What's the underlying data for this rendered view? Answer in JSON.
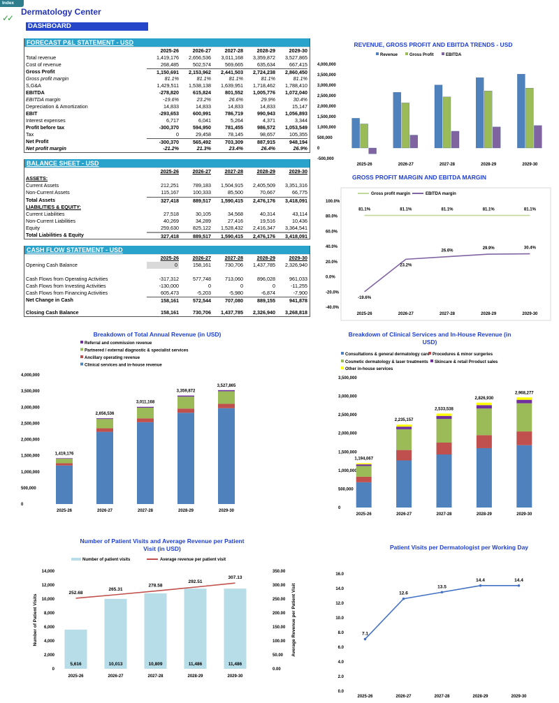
{
  "header": {
    "index_tab": "Index",
    "title": "Dermatology Center",
    "check_icon": "double-check-icon",
    "dashboard_label": "DASHBOARD"
  },
  "colors": {
    "accent_blue": "#2546c8",
    "table_header": "#2aa3cc",
    "title_blue": "#1f3fd0"
  },
  "pnl": {
    "title": "FORECAST P&L STATEMENT - USD",
    "years": [
      "2025-26",
      "2026-27",
      "2027-28",
      "2028-29",
      "2029-30"
    ],
    "rows": [
      {
        "label": "Total revenue",
        "values": [
          "1,419,176",
          "2,656,536",
          "3,011,168",
          "3,359,872",
          "3,527,865"
        ]
      },
      {
        "label": "Cost of revenue",
        "values": [
          "268,485",
          "502,574",
          "569,665",
          "635,634",
          "667,415"
        ]
      },
      {
        "label": "Gross Profit",
        "values": [
          "1,150,691",
          "2,153,962",
          "2,441,503",
          "2,724,238",
          "2,860,450"
        ]
      },
      {
        "label": "Gross profit margin",
        "values": [
          "81.1%",
          "81.1%",
          "81.1%",
          "81.1%",
          "81.1%"
        ]
      },
      {
        "label": "S,G&A",
        "values": [
          "1,429,511",
          "1,538,138",
          "1,639,951",
          "1,718,462",
          "1,788,410"
        ]
      },
      {
        "label": "EBITDA",
        "values": [
          "-278,820",
          "615,824",
          "801,552",
          "1,005,776",
          "1,072,040"
        ]
      },
      {
        "label": "EBITDA margin",
        "values": [
          "-19.6%",
          "23.2%",
          "26.6%",
          "29.9%",
          "30.4%"
        ]
      },
      {
        "label": "Depreciation & Amortization",
        "values": [
          "14,833",
          "14,833",
          "14,833",
          "14,833",
          "15,147"
        ]
      },
      {
        "label": "EBIT",
        "values": [
          "-293,653",
          "600,991",
          "786,719",
          "990,943",
          "1,056,893"
        ]
      },
      {
        "label": "Interest expenses",
        "values": [
          "6,717",
          "6,041",
          "5,264",
          "4,371",
          "3,344"
        ]
      },
      {
        "label": "Profit before tax",
        "values": [
          "-300,370",
          "594,950",
          "781,455",
          "986,572",
          "1,053,549"
        ]
      },
      {
        "label": "Tax",
        "values": [
          "0",
          "29,458",
          "78,145",
          "98,657",
          "105,355"
        ]
      },
      {
        "label": "Net Profit",
        "values": [
          "-300,370",
          "565,492",
          "703,309",
          "887,915",
          "948,194"
        ]
      },
      {
        "label": "Net profit margin",
        "values": [
          "-21.2%",
          "21.3%",
          "23.4%",
          "26.4%",
          "26.9%"
        ]
      }
    ]
  },
  "balance": {
    "title": "BALANCE SHEET - USD",
    "years": [
      "2025-26",
      "2026-27",
      "2027-28",
      "2028-29",
      "2029-30"
    ],
    "rows": [
      {
        "label": "ASSETS:",
        "values": []
      },
      {
        "label": "Current Assets",
        "values": [
          "212,251",
          "789,183",
          "1,504,915",
          "2,405,509",
          "3,351,316"
        ]
      },
      {
        "label": "Non-Current Assets",
        "values": [
          "115,167",
          "100,333",
          "85,500",
          "70,667",
          "66,775"
        ]
      },
      {
        "label": "Total Assets",
        "values": [
          "327,418",
          "889,517",
          "1,590,415",
          "2,476,176",
          "3,418,091"
        ]
      },
      {
        "label": "LIABILITIES & EQUITY:",
        "values": []
      },
      {
        "label": "Current Liabilities",
        "values": [
          "27,518",
          "30,105",
          "34,568",
          "40,314",
          "43,114"
        ]
      },
      {
        "label": "Non-Current Liabilities",
        "values": [
          "40,269",
          "34,289",
          "27,416",
          "19,516",
          "10,436"
        ]
      },
      {
        "label": "Equity",
        "values": [
          "259,630",
          "825,122",
          "1,528,432",
          "2,416,347",
          "3,364,541"
        ]
      },
      {
        "label": "Total Liabilities & Equity",
        "values": [
          "327,418",
          "889,517",
          "1,590,415",
          "2,476,176",
          "3,418,091"
        ]
      }
    ]
  },
  "cashflow": {
    "title": "CASH FLOW STATEMENT - USD",
    "years": [
      "2025-26",
      "2026-27",
      "2027-28",
      "2028-29",
      "2029-30"
    ],
    "rows": [
      {
        "label": "Opening Cash Balance",
        "values": [
          "0",
          "158,161",
          "730,706",
          "1,437,785",
          "2,326,940"
        ]
      },
      {
        "label": "Cash Flows from Operating Activities",
        "values": [
          "-317,312",
          "577,748",
          "713,060",
          "896,028",
          "961,033"
        ]
      },
      {
        "label": "Cash Flows from Investing Activities",
        "values": [
          "-130,000",
          "0",
          "0",
          "0",
          "-11,255"
        ]
      },
      {
        "label": "Cash Flows from Financing Activities",
        "values": [
          "605,473",
          "-5,203",
          "-5,980",
          "-6,874",
          "-7,900"
        ]
      },
      {
        "label": "Net Change in Cash",
        "values": [
          "158,161",
          "572,544",
          "707,080",
          "889,155",
          "941,878"
        ]
      },
      {
        "label": "Closing Cash Balance",
        "values": [
          "158,161",
          "730,706",
          "1,437,785",
          "2,326,940",
          "3,268,818"
        ]
      }
    ]
  },
  "chart_data": [
    {
      "type": "bar",
      "title": "REVENUE, GROSS PROFIT AND EBITDA TRENDS - USD",
      "categories": [
        "2025-26",
        "2026-27",
        "2027-28",
        "2028-29",
        "2029-30"
      ],
      "ylim": [
        -500000,
        4000000
      ],
      "ytick_step": 500000,
      "legend": "top",
      "series": [
        {
          "name": "Revenue",
          "color": "#4f81bd",
          "values": [
            1419176,
            2656536,
            3011168,
            3359872,
            3527865
          ]
        },
        {
          "name": "Gross Profit",
          "color": "#9bbb59",
          "values": [
            1150691,
            2153962,
            2441503,
            2724238,
            2860450
          ]
        },
        {
          "name": "EBITDA",
          "color": "#8064a2",
          "values": [
            -278820,
            615824,
            801552,
            1005776,
            1072040
          ]
        }
      ]
    },
    {
      "type": "line",
      "title": "GROSS PROFIT MARGIN AND EBITDA MARGIN",
      "categories": [
        "2025-26",
        "2026-27",
        "2027-28",
        "2028-29",
        "2029-30"
      ],
      "ylim": [
        -40,
        100
      ],
      "ytick_step": 20,
      "unit": "%",
      "legend": "top",
      "series": [
        {
          "name": "Gross profit margin",
          "color": "#c4d79b",
          "values": [
            81.1,
            81.1,
            81.1,
            81.1,
            81.1
          ]
        },
        {
          "name": "EBITDA margin",
          "color": "#8064a2",
          "values": [
            -19.6,
            23.2,
            26.6,
            29.9,
            30.4
          ]
        }
      ]
    },
    {
      "type": "bar",
      "stacked": true,
      "title": "Breakdown of Total Annual Revenue (in USD)",
      "categories": [
        "2025-26",
        "2026-27",
        "2027-28",
        "2028-29",
        "2029-30"
      ],
      "ylim": [
        0,
        4000000
      ],
      "ytick_step": 500000,
      "legend": "top",
      "totals": [
        1419176,
        2656536,
        3011168,
        3359872,
        3527865
      ],
      "series": [
        {
          "name": "Clinical services and in-house revenue",
          "color": "#4f81bd",
          "values": [
            1194067,
            2235157,
            2533538,
            2826930,
            2968277
          ]
        },
        {
          "name": "Ancillary operating revenue",
          "color": "#c0504d",
          "values": [
            70000,
            110000,
            120000,
            130000,
            135000
          ]
        },
        {
          "name": "Partnered / external diagnostic & specialist services",
          "color": "#9bbb59",
          "values": [
            140000,
            290000,
            330000,
            370000,
            390000
          ]
        },
        {
          "name": "Referral and commission revenue",
          "color": "#7030a0",
          "values": [
            15109,
            21379,
            27630,
            32942,
            34588
          ]
        }
      ]
    },
    {
      "type": "bar",
      "stacked": true,
      "title": "Breakdown of Clinical Services and In-House Revenue (in USD)",
      "categories": [
        "2025-26",
        "2026-27",
        "2027-28",
        "2028-29",
        "2029-30"
      ],
      "ylim": [
        0,
        3500000
      ],
      "ytick_step": 500000,
      "legend": "top",
      "totals": [
        1194067,
        2235157,
        2533538,
        2826930,
        2968277
      ],
      "series": [
        {
          "name": "Consultations & general dermatology care",
          "color": "#4f81bd",
          "values": [
            680000,
            1270000,
            1430000,
            1600000,
            1680000
          ]
        },
        {
          "name": "Procedures & minor surgeries",
          "color": "#c0504d",
          "values": [
            150000,
            280000,
            320000,
            350000,
            370000
          ]
        },
        {
          "name": "Cosmetic dermatology & laser treatments",
          "color": "#9bbb59",
          "values": [
            290000,
            560000,
            640000,
            720000,
            760000
          ]
        },
        {
          "name": "Skincare & retail Prroduct sales",
          "color": "#7030a0",
          "values": [
            44067,
            70157,
            80000,
            90000,
            94000
          ]
        },
        {
          "name": "Other in-house services",
          "color": "#ffff00",
          "values": [
            30000,
            55000,
            63538,
            66930,
            64277
          ]
        }
      ]
    },
    {
      "type": "bar+line",
      "title": "Number of Patient Visits  and  Average Revenue per Patient Visit (in USD)",
      "categories": [
        "2025-26",
        "2026-27",
        "2027-28",
        "2028-29",
        "2029-30"
      ],
      "ylabel": "Number of Patient Visits",
      "ylim": [
        0,
        14000
      ],
      "ytick_step": 2000,
      "y2label": "Average Revenue per Patient Visit",
      "y2lim": [
        0,
        350
      ],
      "y2tick_step": 50,
      "legend": "top",
      "series": [
        {
          "name": "Number of patient visits",
          "type": "bar",
          "axis": "left",
          "color": "#b7dde8",
          "values": [
            5616,
            10013,
            10809,
            11486,
            11486
          ]
        },
        {
          "name": "Average revenue per patient visit",
          "type": "line",
          "axis": "right",
          "color": "#c0504d",
          "values": [
            252.68,
            265.31,
            278.58,
            292.51,
            307.13
          ]
        }
      ]
    },
    {
      "type": "line",
      "title": "Patient Visits per Dermatologist per Working Day",
      "categories": [
        "2025-26",
        "2026-27",
        "2027-28",
        "2028-29",
        "2029-30"
      ],
      "ylim": [
        0,
        16
      ],
      "ytick_step": 2,
      "series": [
        {
          "color": "#4472c4",
          "values": [
            7.1,
            12.6,
            13.5,
            14.4,
            14.4
          ]
        }
      ]
    }
  ]
}
